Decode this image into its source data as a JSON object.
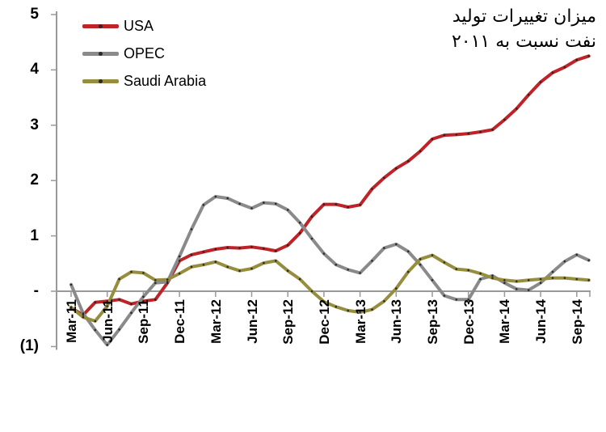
{
  "title": {
    "line1": "میزان تغییرات تولید",
    "line2": "نفت نسبت به ۲۰۱۱"
  },
  "chart_data": {
    "type": "line",
    "title": "میزان تغییرات تولید نفت نسبت به ۲۰۱۱",
    "x": [
      "Mar-11",
      "Apr-11",
      "May-11",
      "Jun-11",
      "Jul-11",
      "Aug-11",
      "Sep-11",
      "Oct-11",
      "Nov-11",
      "Dec-11",
      "Jan-12",
      "Feb-12",
      "Mar-12",
      "Apr-12",
      "May-12",
      "Jun-12",
      "Jul-12",
      "Aug-12",
      "Sep-12",
      "Oct-12",
      "Nov-12",
      "Dec-12",
      "Jan-13",
      "Feb-13",
      "Mar-13",
      "Apr-13",
      "May-13",
      "Jun-13",
      "Jul-13",
      "Aug-13",
      "Sep-13",
      "Oct-13",
      "Nov-13",
      "Dec-13",
      "Jan-14",
      "Feb-14",
      "Mar-14",
      "Apr-14",
      "May-14",
      "Jun-14",
      "Jul-14",
      "Aug-14",
      "Sep-14",
      "Oct-14"
    ],
    "series": [
      {
        "name": "USA",
        "color": "#be2328",
        "values": [
          -0.3,
          -0.43,
          -0.2,
          -0.18,
          -0.15,
          -0.23,
          -0.18,
          -0.15,
          0.15,
          0.55,
          0.66,
          0.71,
          0.76,
          0.79,
          0.78,
          0.8,
          0.77,
          0.73,
          0.83,
          1.05,
          1.35,
          1.57,
          1.57,
          1.52,
          1.56,
          1.85,
          2.05,
          2.22,
          2.35,
          2.53,
          2.75,
          2.82,
          2.83,
          2.85,
          2.88,
          2.92,
          3.1,
          3.3,
          3.55,
          3.78,
          3.95,
          4.05,
          4.18,
          4.25
        ]
      },
      {
        "name": "OPEC",
        "color": "#8a8a8a",
        "values": [
          0.12,
          -0.4,
          -0.7,
          -0.97,
          -0.69,
          -0.39,
          -0.1,
          0.15,
          0.17,
          0.63,
          1.12,
          1.56,
          1.71,
          1.68,
          1.58,
          1.5,
          1.6,
          1.58,
          1.47,
          1.24,
          0.95,
          0.68,
          0.48,
          0.39,
          0.33,
          0.55,
          0.78,
          0.85,
          0.72,
          0.48,
          0.2,
          -0.08,
          -0.15,
          -0.15,
          0.22,
          0.28,
          0.15,
          0.04,
          0.02,
          0.15,
          0.35,
          0.54,
          0.66,
          0.56
        ]
      },
      {
        "name": "Saudi Arabia",
        "color": "#968e3e",
        "values": [
          -0.29,
          -0.47,
          -0.54,
          -0.27,
          0.22,
          0.35,
          0.33,
          0.2,
          0.21,
          0.32,
          0.44,
          0.48,
          0.53,
          0.44,
          0.37,
          0.41,
          0.51,
          0.55,
          0.37,
          0.22,
          0.0,
          -0.19,
          -0.28,
          -0.35,
          -0.38,
          -0.33,
          -0.18,
          0.05,
          0.35,
          0.58,
          0.65,
          0.52,
          0.4,
          0.38,
          0.32,
          0.24,
          0.2,
          0.18,
          0.2,
          0.22,
          0.24,
          0.24,
          0.22,
          0.2
        ]
      }
    ],
    "ylim": [
      -1,
      5
    ],
    "y_ticks": {
      "values": [
        5,
        4,
        3,
        2,
        1,
        0,
        -1
      ],
      "labels": [
        "5",
        "4",
        "3",
        "2",
        "1",
        "-",
        "(1)"
      ]
    },
    "x_tick_labels": [
      "Mar-11",
      "Jun-11",
      "Sep-11",
      "Dec-11",
      "Mar-12",
      "Jun-12",
      "Sep-12",
      "Dec-12",
      "Mar-13",
      "Jun-13",
      "Sep-13",
      "Dec-13",
      "Mar-14",
      "Jun-14",
      "Sep-14"
    ],
    "x_tick_every": 3,
    "grid": false,
    "legend_position": "top-left",
    "axis_color": "#999999",
    "marker_color": "#222222"
  }
}
